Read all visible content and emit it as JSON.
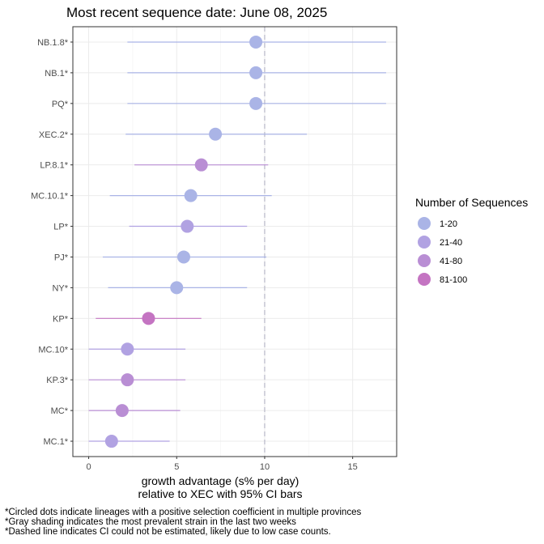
{
  "chart_data": {
    "type": "scatter",
    "title": "Most recent sequence date: June 08, 2025",
    "xlabel_lines": [
      "growth advantage (s% per day)",
      "relative to  XEC  with 95% CI bars"
    ],
    "ylabel": "",
    "xlim": [
      -0.9,
      17.5
    ],
    "xticks": [
      0,
      5,
      10,
      15
    ],
    "xtick_labels": [
      "0",
      "5",
      "10",
      "15"
    ],
    "grid": true,
    "reference_line": {
      "x": 10,
      "style": "dashed"
    },
    "legend": {
      "title": "Number of Sequences",
      "placement": "right",
      "entries": [
        {
          "label": "1-20",
          "color": "#aab4e6"
        },
        {
          "label": "21-40",
          "color": "#b1a2e2"
        },
        {
          "label": "41-80",
          "color": "#b98ed4"
        },
        {
          "label": "81-100",
          "color": "#c474c2"
        }
      ]
    },
    "points": [
      {
        "lineage": "NB.1.8*",
        "estimate": 9.5,
        "ci_low": 2.2,
        "ci_high": 16.9,
        "group": "1-20"
      },
      {
        "lineage": "NB.1*",
        "estimate": 9.5,
        "ci_low": 2.2,
        "ci_high": 16.9,
        "group": "1-20"
      },
      {
        "lineage": "PQ*",
        "estimate": 9.5,
        "ci_low": 2.2,
        "ci_high": 16.9,
        "group": "1-20"
      },
      {
        "lineage": "XEC.2*",
        "estimate": 7.2,
        "ci_low": 2.1,
        "ci_high": 12.4,
        "group": "1-20"
      },
      {
        "lineage": "LP.8.1*",
        "estimate": 6.4,
        "ci_low": 2.6,
        "ci_high": 10.2,
        "group": "41-80"
      },
      {
        "lineage": "MC.10.1*",
        "estimate": 5.8,
        "ci_low": 1.2,
        "ci_high": 10.4,
        "group": "1-20"
      },
      {
        "lineage": "LP*",
        "estimate": 5.6,
        "ci_low": 2.3,
        "ci_high": 9.0,
        "group": "21-40"
      },
      {
        "lineage": "PJ*",
        "estimate": 5.4,
        "ci_low": 0.8,
        "ci_high": 10.1,
        "group": "1-20"
      },
      {
        "lineage": "NY*",
        "estimate": 5.0,
        "ci_low": 1.1,
        "ci_high": 9.0,
        "group": "1-20"
      },
      {
        "lineage": "KP*",
        "estimate": 3.4,
        "ci_low": 0.4,
        "ci_high": 6.4,
        "group": "81-100"
      },
      {
        "lineage": "MC.10*",
        "estimate": 2.2,
        "ci_low": 0.0,
        "ci_high": 5.5,
        "group": "21-40"
      },
      {
        "lineage": "KP.3*",
        "estimate": 2.2,
        "ci_low": 0.0,
        "ci_high": 5.5,
        "group": "41-80"
      },
      {
        "lineage": "MC*",
        "estimate": 1.9,
        "ci_low": 0.0,
        "ci_high": 5.2,
        "group": "41-80"
      },
      {
        "lineage": "MC.1*",
        "estimate": 1.3,
        "ci_low": 0.0,
        "ci_high": 4.6,
        "group": "21-40"
      }
    ],
    "footnotes": [
      "*Circled dots indicate lineages with a positive selection coefficient in multiple provinces",
      "*Gray shading indicates the most prevalent strain in the last two weeks",
      "*Dashed line indicates CI could not be estimated, likely due to low case counts."
    ]
  }
}
